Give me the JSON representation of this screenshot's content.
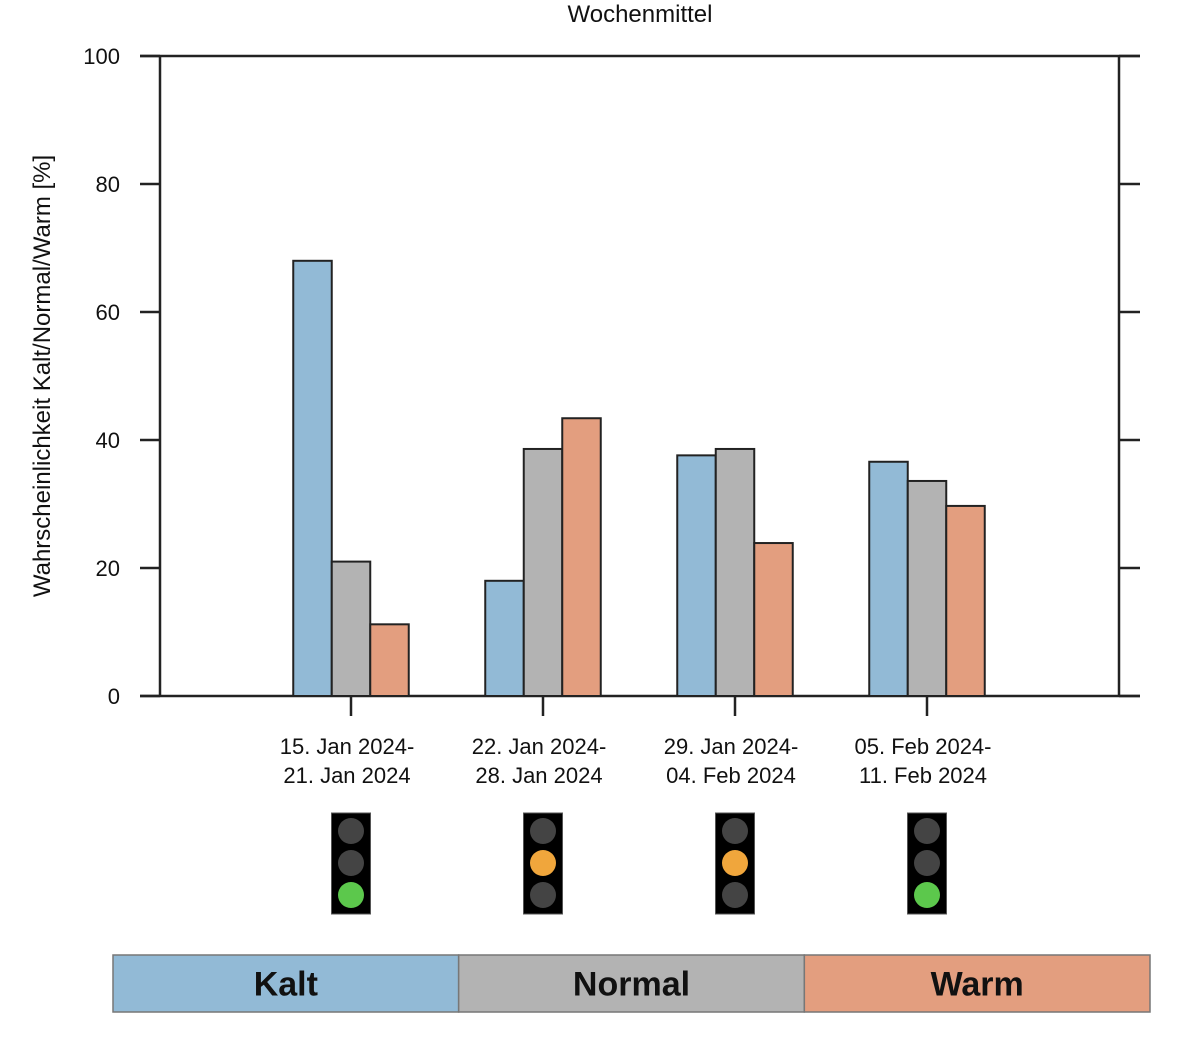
{
  "chart_data": {
    "type": "bar",
    "title": "Wochenmittel",
    "xlabel": "",
    "ylabel": "Wahrscheinlichkeit Kalt/Normal/Warm [%]",
    "ylim": [
      0,
      100
    ],
    "yticks": [
      0,
      20,
      40,
      60,
      80,
      100
    ],
    "grid": false,
    "categories": [
      [
        "15. Jan 2024-",
        "21. Jan 2024"
      ],
      [
        "22. Jan 2024-",
        "28. Jan 2024"
      ],
      [
        "29. Jan 2024-",
        "04. Feb 2024"
      ],
      [
        "05. Feb 2024-",
        "11. Feb 2024"
      ]
    ],
    "series": [
      {
        "name": "Kalt",
        "color": "#92bad6",
        "values": [
          68,
          18,
          37.6,
          36.6
        ]
      },
      {
        "name": "Normal",
        "color": "#b3b3b3",
        "values": [
          21,
          38.6,
          38.6,
          33.6
        ]
      },
      {
        "name": "Warm",
        "color": "#e39e7f",
        "values": [
          11.2,
          43.4,
          23.9,
          29.7
        ]
      }
    ],
    "traffic_lights": [
      "green",
      "orange",
      "orange",
      "green"
    ],
    "traffic_light_colors": {
      "green": "#5cc84c",
      "orange": "#f0a63c",
      "off": "#444444"
    },
    "legend": {
      "placement": "bottom",
      "entries": [
        {
          "label": "Kalt",
          "color": "#92bad6"
        },
        {
          "label": "Normal",
          "color": "#b3b3b3"
        },
        {
          "label": "Warm",
          "color": "#e39e7f"
        }
      ]
    }
  }
}
